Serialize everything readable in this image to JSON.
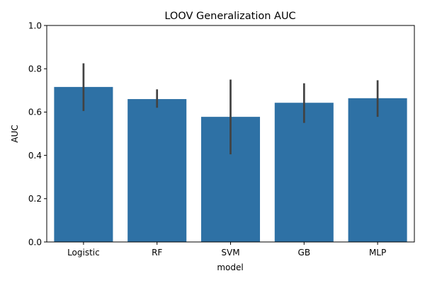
{
  "chart_data": {
    "type": "bar",
    "title": "LOOV Generalization AUC",
    "xlabel": "model",
    "ylabel": "AUC",
    "ylim": [
      0,
      1
    ],
    "yticks": [
      "0.0",
      "0.2",
      "0.4",
      "0.6",
      "0.8",
      "1.0"
    ],
    "categories": [
      "Logistic",
      "RF",
      "SVM",
      "GB",
      "MLP"
    ],
    "values": [
      0.716,
      0.66,
      0.578,
      0.643,
      0.664
    ],
    "error_low": [
      0.605,
      0.62,
      0.405,
      0.55,
      0.578
    ],
    "error_high": [
      0.825,
      0.705,
      0.75,
      0.733,
      0.747
    ],
    "bar_color": "#2e71a5",
    "error_color": "#424242",
    "grid": false,
    "legend": "none"
  }
}
